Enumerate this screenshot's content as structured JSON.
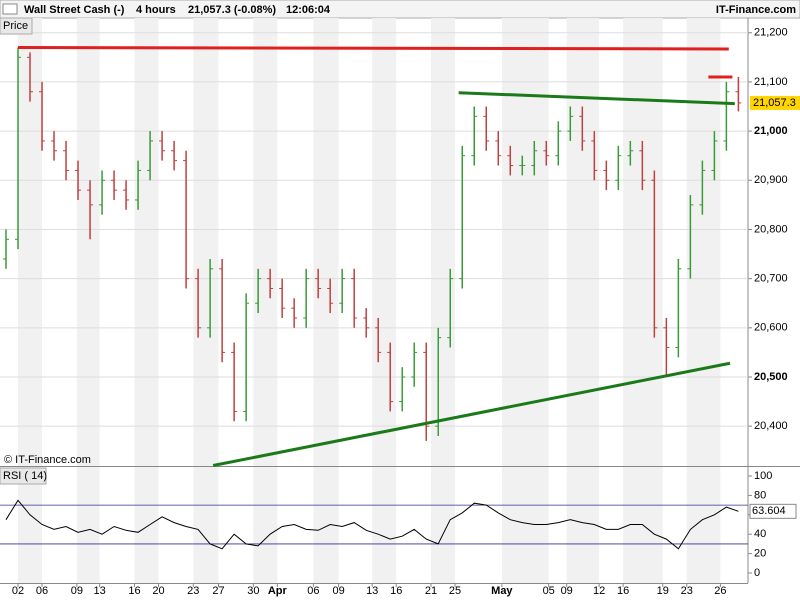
{
  "header": {
    "instrument": "Wall Street Cash (-)",
    "period": "4 hours",
    "quote": "21,057.3 (-0.08%)",
    "time": "12:06:04",
    "brand": "IT-Finance.com",
    "copyright": "© IT-Finance.com",
    "last_price_label": "21,057.3"
  },
  "chart_data": [
    {
      "type": "ohlc",
      "title": "Price",
      "up_color": "#3a9a3a",
      "down_color": "#c04040",
      "grid": true,
      "xlim": [
        -0.5,
        61.8
      ],
      "ylim": [
        20319,
        21230
      ],
      "yticks": [
        {
          "value": 21200,
          "label": "21,200"
        },
        {
          "value": 21100,
          "label": "21,100"
        },
        {
          "value": 21000,
          "label": "21,000"
        },
        {
          "value": 20900,
          "label": "20,900"
        },
        {
          "value": 20800,
          "label": "20,800"
        },
        {
          "value": 20700,
          "label": "20,700"
        },
        {
          "value": 20600,
          "label": "20,600"
        },
        {
          "value": 20500,
          "label": "20,500"
        },
        {
          "value": 20400,
          "label": "20,400"
        }
      ],
      "xticks": [
        {
          "value": 1,
          "label": "02"
        },
        {
          "value": 3,
          "label": "06"
        },
        {
          "value": 5.9,
          "label": "09"
        },
        {
          "value": 7.8,
          "label": "13"
        },
        {
          "value": 10.7,
          "label": "16"
        },
        {
          "value": 12.7,
          "label": "20"
        },
        {
          "value": 15.6,
          "label": "23"
        },
        {
          "value": 17.7,
          "label": "27"
        },
        {
          "value": 20.6,
          "label": "30"
        },
        {
          "value": 22.6,
          "label": "Apr"
        },
        {
          "value": 25.6,
          "label": "06"
        },
        {
          "value": 27.7,
          "label": "09"
        },
        {
          "value": 30.5,
          "label": "13"
        },
        {
          "value": 32.5,
          "label": "16"
        },
        {
          "value": 35.4,
          "label": "21"
        },
        {
          "value": 37.4,
          "label": "25"
        },
        {
          "value": 41.3,
          "label": "May"
        },
        {
          "value": 45.2,
          "label": "05"
        },
        {
          "value": 46.7,
          "label": "09"
        },
        {
          "value": 49.4,
          "label": "12"
        },
        {
          "value": 51.4,
          "label": "16"
        },
        {
          "value": 54.7,
          "label": "19"
        },
        {
          "value": 56.7,
          "label": "23"
        },
        {
          "value": 59.5,
          "label": "26"
        }
      ],
      "open": [
        20740,
        20780,
        21150,
        21080,
        20980,
        20960,
        20920,
        20880,
        20850,
        20900,
        20880,
        20860,
        20920,
        20980,
        20960,
        20940,
        20700,
        20600,
        20720,
        20550,
        20430,
        20650,
        20700,
        20680,
        20640,
        20620,
        20700,
        20680,
        20650,
        20700,
        20620,
        20600,
        20550,
        20450,
        20500,
        20550,
        20400,
        20580,
        20700,
        20950,
        21030,
        20980,
        20950,
        20930,
        20930,
        20960,
        20950,
        21000,
        21030,
        20980,
        20920,
        20900,
        20950,
        20960,
        20900,
        20600,
        20560,
        20720,
        20850,
        20920,
        20980,
        21080
      ],
      "high": [
        20800,
        21170,
        21160,
        21100,
        21000,
        20980,
        20940,
        20900,
        20920,
        20920,
        20900,
        20940,
        21000,
        21000,
        20980,
        20960,
        20720,
        20740,
        20740,
        20570,
        20670,
        20720,
        20720,
        20700,
        20660,
        20720,
        20720,
        20700,
        20720,
        20720,
        20640,
        20620,
        20570,
        20520,
        20570,
        20570,
        20600,
        20720,
        20970,
        21050,
        21050,
        21000,
        20970,
        20950,
        20980,
        20980,
        21020,
        21050,
        21050,
        21000,
        20940,
        20970,
        20980,
        20980,
        20920,
        20620,
        20740,
        20870,
        20940,
        21000,
        21100,
        21110
      ],
      "low": [
        20720,
        20760,
        21060,
        20960,
        20940,
        20900,
        20860,
        20780,
        20830,
        20860,
        20840,
        20840,
        20900,
        20940,
        20920,
        20680,
        20580,
        20580,
        20530,
        20410,
        20410,
        20630,
        20660,
        20620,
        20600,
        20600,
        20660,
        20630,
        20630,
        20600,
        20580,
        20530,
        20430,
        20430,
        20480,
        20370,
        20380,
        20560,
        20680,
        20930,
        20960,
        20930,
        20910,
        20910,
        20910,
        20930,
        20930,
        20980,
        20960,
        20900,
        20880,
        20880,
        20930,
        20880,
        20580,
        20500,
        20540,
        20700,
        20830,
        20900,
        20960,
        21040
      ],
      "close": [
        20780,
        21150,
        21080,
        20980,
        20960,
        20920,
        20880,
        20850,
        20900,
        20880,
        20860,
        20920,
        20980,
        20960,
        20940,
        20700,
        20600,
        20720,
        20550,
        20430,
        20650,
        20700,
        20680,
        20640,
        20620,
        20700,
        20680,
        20650,
        20700,
        20620,
        20600,
        20550,
        20450,
        20500,
        20550,
        20400,
        20580,
        20700,
        20950,
        21030,
        20980,
        20950,
        20930,
        20930,
        20960,
        20950,
        21000,
        21030,
        20980,
        20920,
        20900,
        20950,
        20960,
        20900,
        20600,
        20560,
        20720,
        20850,
        20920,
        20980,
        21080,
        21057.3
      ],
      "trendlines": [
        {
          "color": "#e02020",
          "x": [
            1,
            60.2
          ],
          "values": [
            21170,
            21167
          ]
        },
        {
          "color": "#1a7a1a",
          "x": [
            37.7,
            60.7
          ],
          "values": [
            21078,
            21056
          ]
        },
        {
          "color": "#1a7a1a",
          "x": [
            17.25,
            60.3
          ],
          "values": [
            20320,
            20528
          ]
        },
        {
          "color": "#e02020",
          "x": [
            58.5,
            60.5
          ],
          "values": [
            21110,
            21110
          ]
        }
      ]
    },
    {
      "type": "line",
      "title": "RSI ( 14)",
      "color": "#000000",
      "level_color": "#303090",
      "levels": [
        70,
        30
      ],
      "xlim": [
        -0.5,
        61.8
      ],
      "ylim": [
        -10.3,
        109.3
      ],
      "yticks": [
        100,
        80,
        60,
        40,
        20,
        0
      ],
      "values": [
        55,
        75,
        60,
        50,
        45,
        48,
        42,
        45,
        40,
        48,
        44,
        42,
        50,
        58,
        52,
        48,
        45,
        30,
        25,
        40,
        30,
        28,
        40,
        48,
        50,
        45,
        44,
        50,
        48,
        52,
        44,
        40,
        35,
        38,
        45,
        35,
        30,
        55,
        62,
        72,
        70,
        62,
        55,
        52,
        50,
        50,
        52,
        55,
        52,
        50,
        45,
        45,
        50,
        50,
        40,
        35,
        25,
        45,
        55,
        60,
        68,
        63.604
      ]
    }
  ]
}
